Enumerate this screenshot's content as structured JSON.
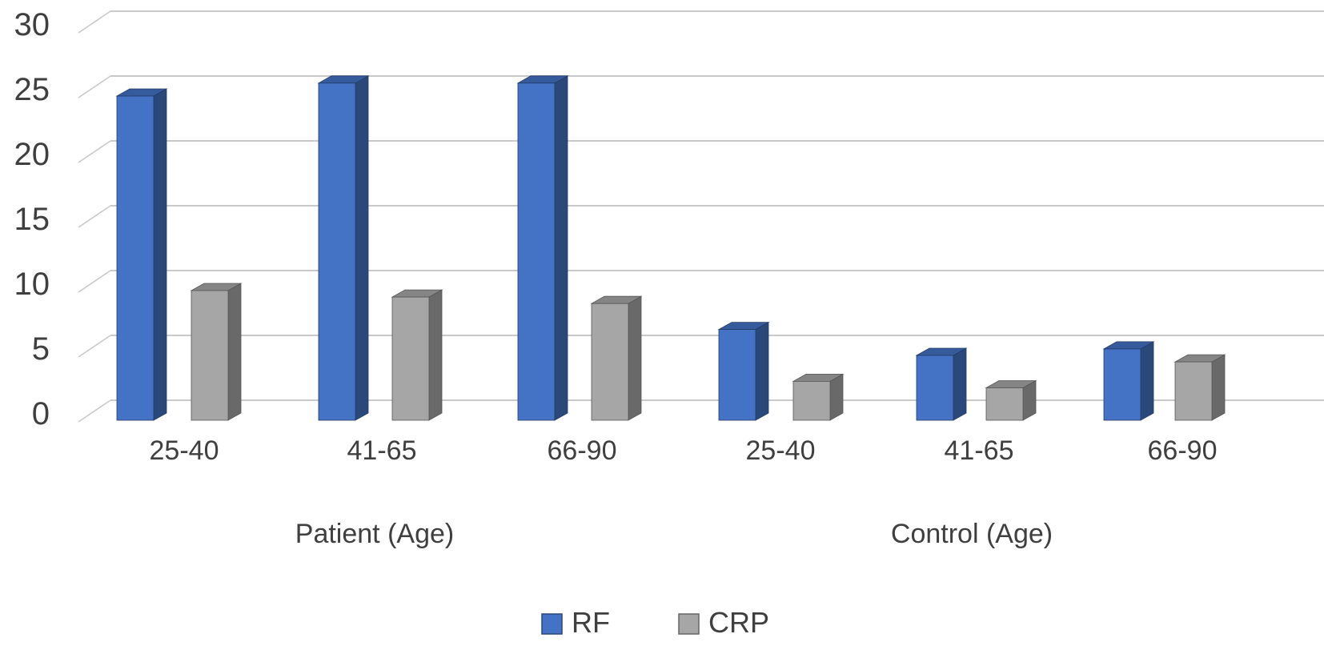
{
  "chart_data": {
    "type": "bar",
    "projection": "3d-oblique-column",
    "title": "",
    "categories": [
      "25-40",
      "41-65",
      "66-90",
      "25-40",
      "41-65",
      "66-90"
    ],
    "groups": [
      {
        "label": "Patient (Age)",
        "category_indexes": [
          0,
          1,
          2
        ]
      },
      {
        "label": "Control (Age)",
        "category_indexes": [
          3,
          4,
          5
        ]
      }
    ],
    "series": [
      {
        "name": "RF",
        "color": "#4472C4",
        "values": [
          25,
          26,
          26,
          7,
          5,
          5.5
        ]
      },
      {
        "name": "CRP",
        "color": "#A6A6A6",
        "values": [
          10,
          9.5,
          9,
          3,
          2.5,
          4.5
        ]
      }
    ],
    "y_axis": {
      "min": 0,
      "max": 30,
      "step": 5,
      "tick_labels": [
        "0",
        "5",
        "10",
        "15",
        "20",
        "25",
        "30"
      ]
    },
    "legend": {
      "position": "bottom-center",
      "items": [
        "RF",
        "CRP"
      ]
    },
    "grid": true,
    "gridline_color": "#C9C9C9",
    "text_color": "#3f3f3f",
    "background_color": "#ffffff"
  }
}
